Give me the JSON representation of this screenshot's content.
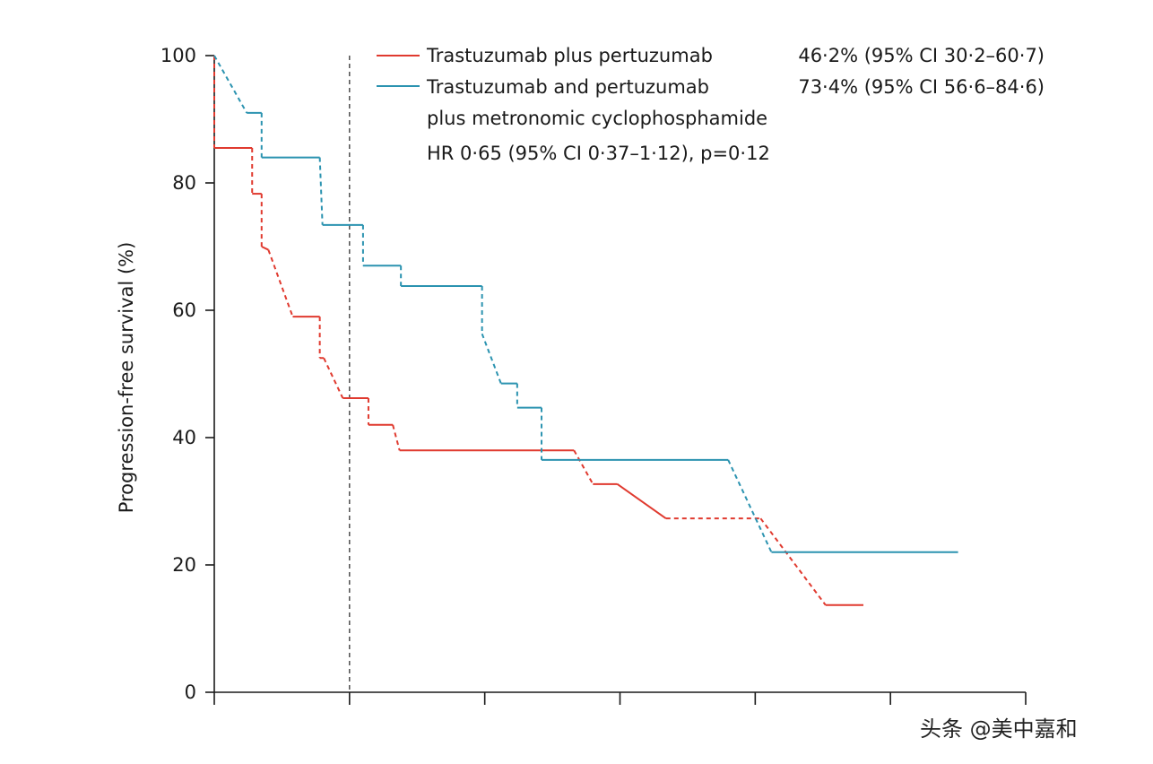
{
  "chart_data": {
    "type": "line",
    "title": "",
    "xlabel": "",
    "ylabel": "Progression-free survival (%)",
    "ylim": [
      0,
      100
    ],
    "yticks": [
      0,
      20,
      40,
      60,
      80,
      100
    ],
    "ytick_labels": [
      "0",
      "20",
      "40",
      "60",
      "80",
      "100"
    ],
    "xlim": [
      0,
      30
    ],
    "xticks": [
      0,
      5,
      10,
      15,
      20,
      25,
      30
    ],
    "reference_line_x": 5,
    "series": [
      {
        "name": "Trastuzumab plus pertuzumab",
        "color": "#e03a2f",
        "stat": "46·2% (95% CI 30·2–60·7)",
        "points": [
          {
            "x": 0,
            "y": 100,
            "seg": "dashed"
          },
          {
            "x": 0,
            "y": 85.5,
            "seg": "solid"
          },
          {
            "x": 1.4,
            "y": 85.5,
            "seg": "dashed"
          },
          {
            "x": 1.4,
            "y": 78.3,
            "seg": "solid"
          },
          {
            "x": 1.75,
            "y": 78.3,
            "seg": "dashed"
          },
          {
            "x": 1.75,
            "y": 70,
            "seg": "solid"
          },
          {
            "x": 2.0,
            "y": 69.5,
            "seg": "dashed"
          },
          {
            "x": 2.9,
            "y": 59,
            "seg": "solid"
          },
          {
            "x": 3.9,
            "y": 59,
            "seg": "dashed"
          },
          {
            "x": 3.9,
            "y": 52.5,
            "seg": "solid"
          },
          {
            "x": 4.05,
            "y": 52.5,
            "seg": "dashed"
          },
          {
            "x": 4.75,
            "y": 46.2,
            "seg": "solid"
          },
          {
            "x": 5.7,
            "y": 46.2,
            "seg": "dashed"
          },
          {
            "x": 5.7,
            "y": 42,
            "seg": "solid"
          },
          {
            "x": 6.6,
            "y": 42,
            "seg": "dashed"
          },
          {
            "x": 6.85,
            "y": 38,
            "seg": "solid"
          },
          {
            "x": 13.3,
            "y": 38,
            "seg": "dashed"
          },
          {
            "x": 14.0,
            "y": 32.7,
            "seg": "solid"
          },
          {
            "x": 14.9,
            "y": 32.7,
            "seg": "solid"
          },
          {
            "x": 16.7,
            "y": 27.3,
            "seg": "dashed"
          },
          {
            "x": 20.2,
            "y": 27.3,
            "seg": "dashed"
          },
          {
            "x": 22.6,
            "y": 13.7,
            "seg": "solid"
          },
          {
            "x": 24.0,
            "y": 13.7,
            "seg": "solid"
          }
        ]
      },
      {
        "name": "Trastuzumab and pertuzumab plus metronomic cyclophosphamide",
        "name_lines": [
          "Trastuzumab and pertuzumab",
          "plus metronomic cyclophosphamide"
        ],
        "color": "#2b93b0",
        "stat": "73·4% (95% CI 56·6–84·6)",
        "points": [
          {
            "x": 0,
            "y": 100,
            "seg": "dashed"
          },
          {
            "x": 1.2,
            "y": 91,
            "seg": "solid"
          },
          {
            "x": 1.75,
            "y": 91,
            "seg": "dashed"
          },
          {
            "x": 1.75,
            "y": 84,
            "seg": "solid"
          },
          {
            "x": 3.9,
            "y": 84,
            "seg": "dashed"
          },
          {
            "x": 4.0,
            "y": 73.4,
            "seg": "solid"
          },
          {
            "x": 5.5,
            "y": 73.4,
            "seg": "dashed"
          },
          {
            "x": 5.5,
            "y": 67,
            "seg": "solid"
          },
          {
            "x": 6.9,
            "y": 67,
            "seg": "dashed"
          },
          {
            "x": 6.9,
            "y": 63.8,
            "seg": "solid"
          },
          {
            "x": 9.9,
            "y": 63.8,
            "seg": "dashed"
          },
          {
            "x": 9.9,
            "y": 56.3,
            "seg": "dashed"
          },
          {
            "x": 10.6,
            "y": 48.5,
            "seg": "solid"
          },
          {
            "x": 11.2,
            "y": 48.5,
            "seg": "dashed"
          },
          {
            "x": 11.2,
            "y": 44.7,
            "seg": "solid"
          },
          {
            "x": 12.1,
            "y": 44.7,
            "seg": "dashed"
          },
          {
            "x": 12.1,
            "y": 36.5,
            "seg": "solid"
          },
          {
            "x": 19.0,
            "y": 36.5,
            "seg": "dashed"
          },
          {
            "x": 20.6,
            "y": 22,
            "seg": "solid"
          },
          {
            "x": 27.5,
            "y": 22,
            "seg": "solid"
          }
        ]
      }
    ],
    "annotation": "HR 0·65 (95% CI 0·37–1·12), p=0·12"
  },
  "watermark": "头条 @美中嘉和"
}
